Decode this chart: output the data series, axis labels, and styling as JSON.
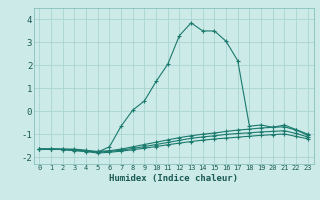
{
  "xlabel": "Humidex (Indice chaleur)",
  "background_color": "#cceae7",
  "grid_color": "#aad4d0",
  "line_color": "#1a7a6e",
  "xlim": [
    -0.5,
    23.5
  ],
  "ylim": [
    -2.3,
    4.5
  ],
  "xtick_labels": [
    "0",
    "1",
    "2",
    "3",
    "4",
    "5",
    "6",
    "7",
    "8",
    "9",
    "10",
    "11",
    "12",
    "13",
    "14",
    "15",
    "16",
    "17",
    "18",
    "19",
    "20",
    "21",
    "22",
    "23"
  ],
  "ytick_values": [
    -2,
    -1,
    0,
    1,
    2,
    3,
    4
  ],
  "series": [
    [
      [
        0,
        -1.65
      ],
      [
        1,
        -1.65
      ],
      [
        2,
        -1.65
      ],
      [
        3,
        -1.65
      ],
      [
        4,
        -1.7
      ],
      [
        5,
        -1.78
      ],
      [
        6,
        -1.55
      ],
      [
        7,
        -0.65
      ],
      [
        8,
        0.05
      ],
      [
        9,
        0.45
      ],
      [
        10,
        1.3
      ],
      [
        11,
        2.05
      ],
      [
        12,
        3.3
      ],
      [
        13,
        3.85
      ],
      [
        14,
        3.5
      ],
      [
        15,
        3.5
      ],
      [
        16,
        3.05
      ],
      [
        17,
        2.2
      ],
      [
        18,
        -0.65
      ],
      [
        19,
        -0.6
      ],
      [
        20,
        -0.7
      ],
      [
        21,
        -0.6
      ],
      [
        22,
        -0.8
      ],
      [
        23,
        -1.0
      ]
    ],
    [
      [
        0,
        -1.65
      ],
      [
        1,
        -1.65
      ],
      [
        2,
        -1.65
      ],
      [
        3,
        -1.68
      ],
      [
        4,
        -1.72
      ],
      [
        5,
        -1.75
      ],
      [
        6,
        -1.72
      ],
      [
        7,
        -1.65
      ],
      [
        8,
        -1.55
      ],
      [
        9,
        -1.45
      ],
      [
        10,
        -1.35
      ],
      [
        11,
        -1.25
      ],
      [
        12,
        -1.15
      ],
      [
        13,
        -1.07
      ],
      [
        14,
        -1.0
      ],
      [
        15,
        -0.95
      ],
      [
        16,
        -0.88
      ],
      [
        17,
        -0.82
      ],
      [
        18,
        -0.78
      ],
      [
        19,
        -0.73
      ],
      [
        20,
        -0.7
      ],
      [
        21,
        -0.68
      ],
      [
        22,
        -0.82
      ],
      [
        23,
        -1.05
      ]
    ],
    [
      [
        0,
        -1.65
      ],
      [
        1,
        -1.65
      ],
      [
        2,
        -1.67
      ],
      [
        3,
        -1.7
      ],
      [
        4,
        -1.74
      ],
      [
        5,
        -1.78
      ],
      [
        6,
        -1.75
      ],
      [
        7,
        -1.7
      ],
      [
        8,
        -1.62
      ],
      [
        9,
        -1.54
      ],
      [
        10,
        -1.45
      ],
      [
        11,
        -1.36
      ],
      [
        12,
        -1.27
      ],
      [
        13,
        -1.18
      ],
      [
        14,
        -1.12
      ],
      [
        15,
        -1.07
      ],
      [
        16,
        -1.01
      ],
      [
        17,
        -0.97
      ],
      [
        18,
        -0.94
      ],
      [
        19,
        -0.9
      ],
      [
        20,
        -0.88
      ],
      [
        21,
        -0.85
      ],
      [
        22,
        -0.97
      ],
      [
        23,
        -1.12
      ]
    ],
    [
      [
        0,
        -1.65
      ],
      [
        1,
        -1.65
      ],
      [
        2,
        -1.67
      ],
      [
        3,
        -1.72
      ],
      [
        4,
        -1.76
      ],
      [
        5,
        -1.82
      ],
      [
        6,
        -1.79
      ],
      [
        7,
        -1.74
      ],
      [
        8,
        -1.68
      ],
      [
        9,
        -1.61
      ],
      [
        10,
        -1.54
      ],
      [
        11,
        -1.46
      ],
      [
        12,
        -1.39
      ],
      [
        13,
        -1.32
      ],
      [
        14,
        -1.26
      ],
      [
        15,
        -1.21
      ],
      [
        16,
        -1.17
      ],
      [
        17,
        -1.13
      ],
      [
        18,
        -1.09
      ],
      [
        19,
        -1.05
      ],
      [
        20,
        -1.02
      ],
      [
        21,
        -0.99
      ],
      [
        22,
        -1.1
      ],
      [
        23,
        -1.2
      ]
    ]
  ]
}
